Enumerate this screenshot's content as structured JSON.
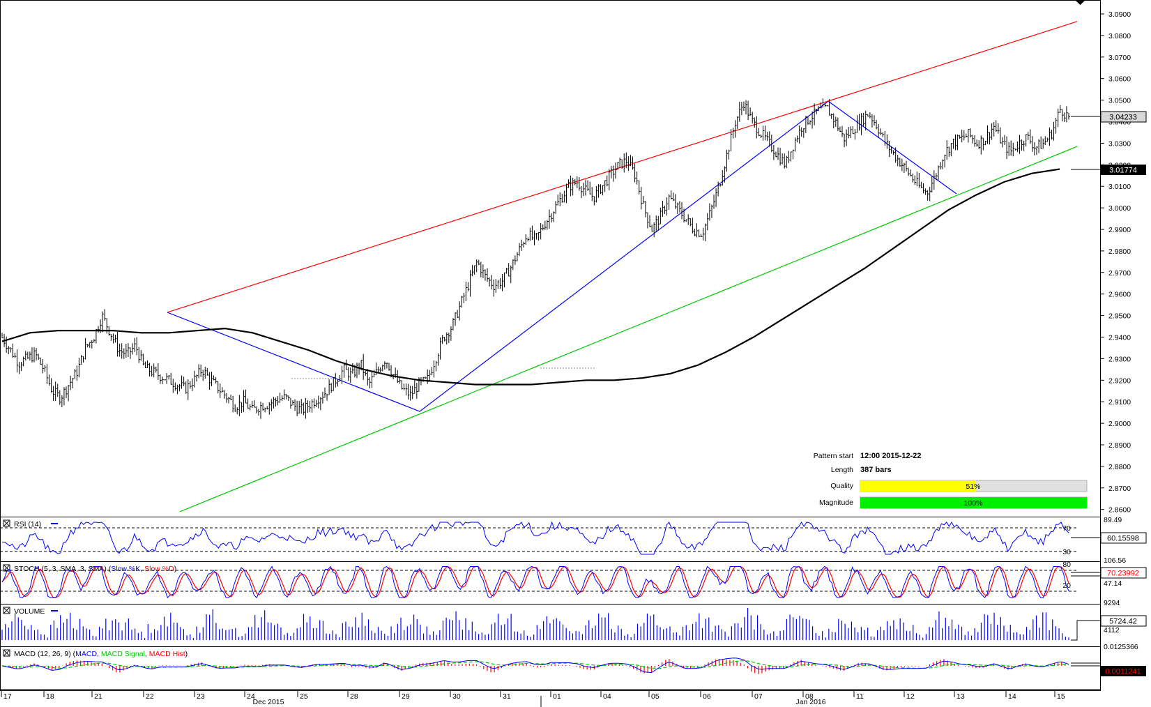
{
  "chart_data": {
    "type": "line",
    "instrument_view": "price chart with indicator panels",
    "price_axis": {
      "ticks": [
        "3.0900",
        "3.0800",
        "3.0700",
        "3.0600",
        "3.0500",
        "3.0400",
        "3.0300",
        "3.0200",
        "3.0100",
        "3.0000",
        "2.9900",
        "2.9800",
        "2.9700",
        "2.9600",
        "2.9500",
        "2.9400",
        "2.9300",
        "2.9200",
        "2.9100",
        "2.9000",
        "2.8900",
        "2.8800",
        "2.8700",
        "2.8600"
      ],
      "ylim": [
        2.8582,
        3.0935
      ],
      "current_price": "3.04233",
      "ma_value": "3.01774"
    },
    "price_series": [
      2.94,
      2.934,
      2.928,
      2.93,
      2.932,
      2.925,
      2.915,
      2.912,
      2.918,
      2.924,
      2.935,
      2.94,
      2.95,
      2.942,
      2.934,
      2.932,
      2.936,
      2.926,
      2.924,
      2.922,
      2.92,
      2.918,
      2.916,
      2.92,
      2.925,
      2.92,
      2.916,
      2.912,
      2.908,
      2.91,
      2.906,
      2.908,
      2.909,
      2.911,
      2.912,
      2.908,
      2.906,
      2.909,
      2.912,
      2.915,
      2.92,
      2.925,
      2.922,
      2.928,
      2.918,
      2.924,
      2.93,
      2.922,
      2.916,
      2.913,
      2.918,
      2.92,
      2.93,
      2.94,
      2.945,
      2.955,
      2.965,
      2.975,
      2.968,
      2.964,
      2.966,
      2.972,
      2.98,
      2.988,
      2.985,
      2.992,
      2.998,
      3.004,
      3.01,
      3.012,
      3.008,
      3.005,
      3.01,
      3.015,
      3.02,
      3.022,
      3.015,
      3.0,
      2.99,
      2.996,
      3.005,
      3.0,
      2.995,
      2.99,
      2.988,
      2.998,
      3.01,
      3.025,
      3.04,
      3.049,
      3.04,
      3.035,
      3.03,
      3.025,
      3.02,
      3.03,
      3.038,
      3.042,
      3.045,
      3.046,
      3.04,
      3.032,
      3.036,
      3.04,
      3.044,
      3.038,
      3.03,
      3.025,
      3.02,
      3.015,
      3.01,
      3.007,
      3.015,
      3.025,
      3.03,
      3.032,
      3.034,
      3.03,
      3.032,
      3.038,
      3.03,
      3.026,
      3.03,
      3.033,
      3.028,
      3.03,
      3.035,
      3.046,
      3.042
    ],
    "ma_series": [
      2.938,
      2.942,
      2.943,
      2.943,
      2.943,
      2.942,
      2.942,
      2.943,
      2.944,
      2.942,
      2.938,
      2.934,
      2.929,
      2.925,
      2.922,
      2.92,
      2.919,
      2.918,
      2.918,
      2.918,
      2.919,
      2.92,
      2.92,
      2.921,
      2.923,
      2.927,
      2.933,
      2.94,
      2.948,
      2.956,
      2.964,
      2.972,
      2.981,
      2.99,
      2.999,
      3.006,
      3.012,
      3.016,
      3.018
    ],
    "pattern_lines": {
      "resistance": {
        "color": "#ff0000",
        "from": [
          "2015-12-22",
          2.9515
        ],
        "to": [
          "2016-01-15",
          3.0865
        ]
      },
      "support": {
        "color": "#00c800",
        "from": [
          "2015-12-22",
          2.859
        ],
        "to": [
          "2016-01-15",
          3.0285
        ]
      },
      "zigzag_color": "#0000ff"
    },
    "info_box": {
      "pattern_start_label": "Pattern start",
      "pattern_start_value": "12:00 2015-12-22",
      "length_label": "Length",
      "length_value": "387 bars",
      "quality_label": "Quality",
      "quality_value": "51%",
      "quality_fraction": 0.51,
      "magnitude_label": "Magnitude",
      "magnitude_value": "100%",
      "magnitude_fraction": 1.0
    },
    "rsi_panel": {
      "title": "RSI (14)",
      "top_value": "89.49",
      "levels": [
        "70",
        "30"
      ],
      "current": "60.15598"
    },
    "stoch_panel": {
      "title_prefix": "STOCH (5, 3, SMA, 3, SMA) (",
      "k_label": "Slow %K",
      "separator": ", ",
      "d_label": "Slow %D",
      "title_suffix": ")",
      "top_value": "106.56",
      "levels": [
        "80",
        "20"
      ],
      "bottom_value": "47.14",
      "current": "70.23992"
    },
    "volume_panel": {
      "title": "VOLUME",
      "top_value": "9294",
      "mid_value": "4112",
      "current": "5724.42"
    },
    "macd_panel": {
      "title_prefix": "MACD (12, 26, 9) (",
      "macd_label": "MACD",
      "signal_label": "MACD Signal",
      "hist_label": "MACD Hist",
      "title_suffix": ")",
      "top_value": "0.0125366",
      "current": "0.0011241"
    },
    "x_axis": {
      "day_ticks": [
        "17",
        "18",
        "21",
        "22",
        "23",
        "24",
        "25",
        "28",
        "29",
        "30",
        "31",
        "01",
        "04",
        "05",
        "06",
        "07",
        "08",
        "11",
        "12",
        "13",
        "14",
        "15"
      ],
      "months": [
        "Dec 2015",
        "Jan 2016"
      ]
    },
    "colors": {
      "price_bars": "#000000",
      "ma": "#000000",
      "rsi": "#0000ff",
      "stoch_k": "#0000ff",
      "stoch_d": "#ff0000",
      "volume": "#0000ff",
      "macd": "#0000ff",
      "macd_signal": "#00c800",
      "macd_hist": "#ff0000",
      "quality_fill": "#ffff00",
      "magnitude_fill": "#00ee00",
      "bar_background": "#e0e0e0"
    }
  }
}
